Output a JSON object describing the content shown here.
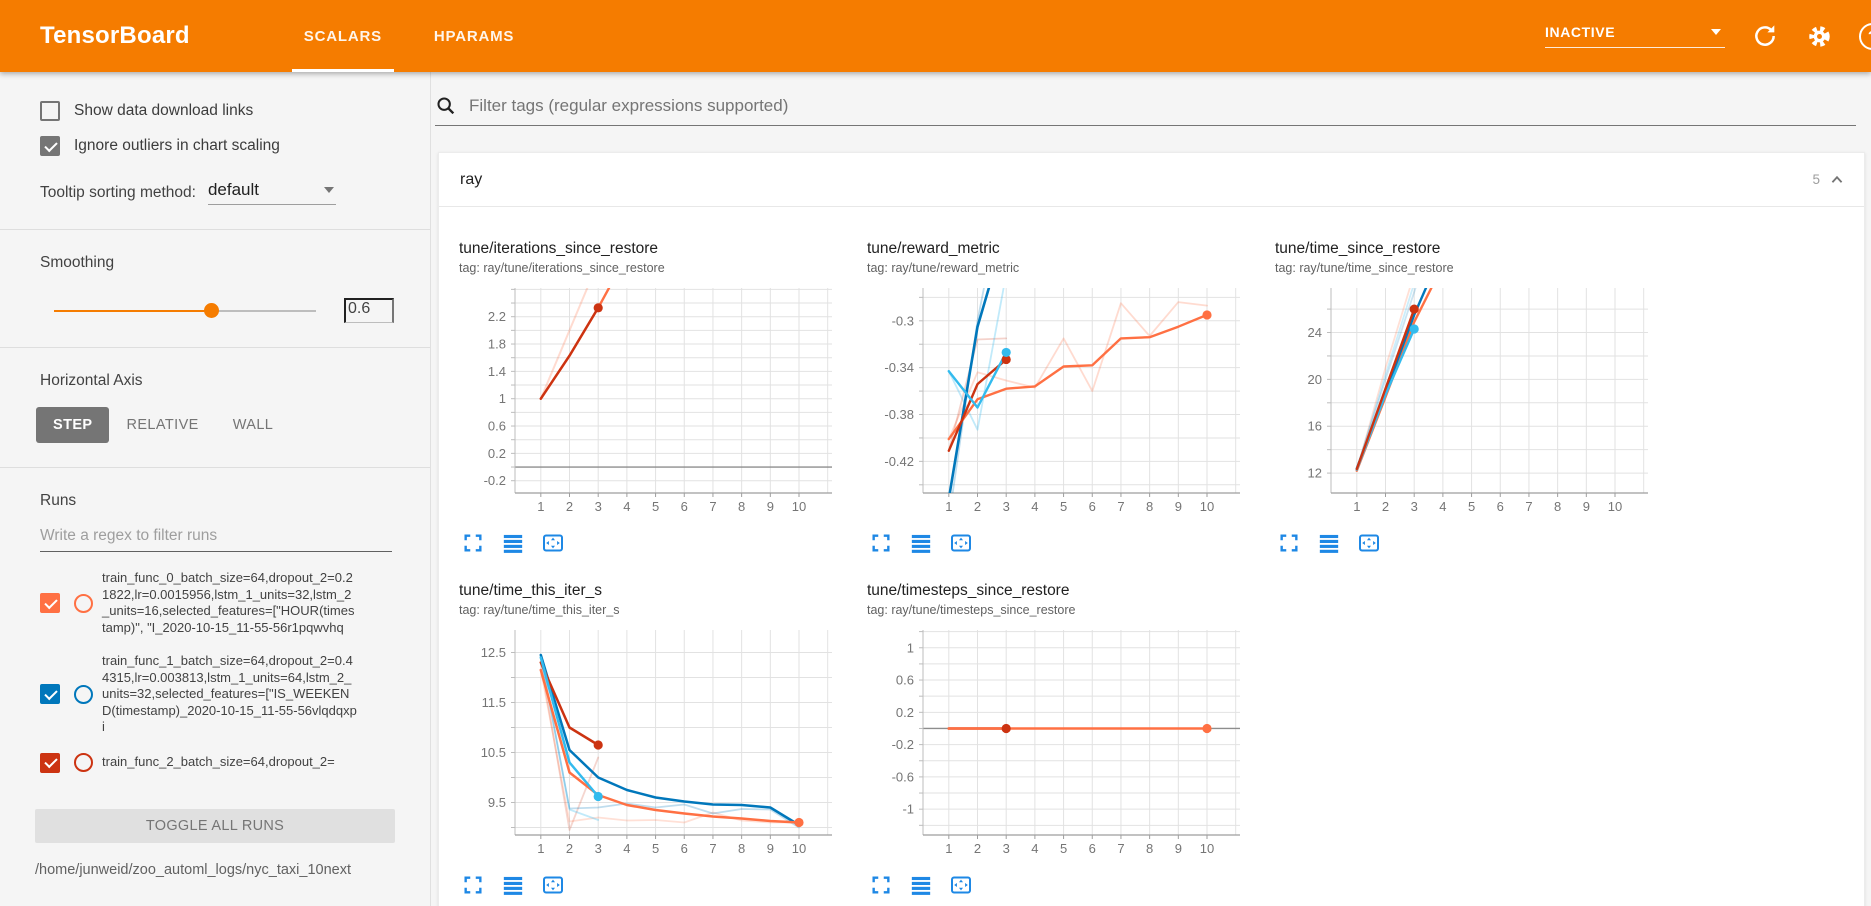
{
  "header": {
    "title": "TensorBoard",
    "tabs": [
      {
        "label": "SCALARS",
        "active": true
      },
      {
        "label": "HPARAMS",
        "active": false
      }
    ],
    "status": "INACTIVE",
    "icons": [
      "status-dropdown-caret-icon",
      "refresh-icon",
      "settings-gear-icon",
      "help-icon"
    ],
    "help_glyph": "?",
    "accent_color": "#f57c00"
  },
  "sidebar": {
    "checkboxes": [
      {
        "label": "Show data download links",
        "checked": false
      },
      {
        "label": "Ignore outliers in chart scaling",
        "checked": true
      }
    ],
    "tooltip_sorting": {
      "label": "Tooltip sorting method:",
      "value": "default"
    },
    "smoothing": {
      "label": "Smoothing",
      "value": "0.6",
      "fraction": 0.6
    },
    "horizontal_axis": {
      "label": "Horizontal Axis",
      "options": [
        "STEP",
        "RELATIVE",
        "WALL"
      ],
      "selected": "STEP"
    },
    "runs": {
      "label": "Runs",
      "filter_placeholder": "Write a regex to filter runs",
      "items": [
        {
          "text": "train_func_0_batch_size=64,dropout_2=0.21822,lr=0.0015956,lstm_1_units=32,lstm_2_units=16,selected_features=[\"HOUR(timestamp)\", \"I_2020-10-15_11-55-56r1pqwvhq",
          "checked": true,
          "color": "#ff7043"
        },
        {
          "text": "train_func_1_batch_size=64,dropout_2=0.44315,lr=0.003813,lstm_1_units=64,lstm_2_units=32,selected_features=[\"IS_WEEKEND(timestamp)_2020-10-15_11-55-56vlqdqxpi",
          "checked": true,
          "color": "#0077bb"
        },
        {
          "text": "train_func_2_batch_size=64,dropout_2=",
          "checked": true,
          "color": "#cc3311"
        }
      ],
      "toggle_all_label": "TOGGLE ALL RUNS",
      "log_path": "/home/junweid/zoo_automl_logs/nyc_taxi_10next"
    }
  },
  "main": {
    "filter_placeholder": "Filter tags (regular expressions supported)",
    "search_icon": "search-icon",
    "section": {
      "name": "ray",
      "count": "5",
      "collapse_icon": "chevron-up-icon"
    },
    "chart_toolbar_icons": [
      "expand-chart-icon",
      "runs-list-icon",
      "fit-domain-icon"
    ],
    "toolbar_icon_color": "#1e88e5"
  },
  "chart_data": [
    {
      "type": "line",
      "title": "tune/iterations_since_restore",
      "tag": "tag: ray/tune/iterations_since_restore",
      "xticks": [
        1,
        2,
        3,
        4,
        5,
        6,
        7,
        8,
        9,
        10
      ],
      "xlim": [
        0.1,
        11.15
      ],
      "ylim": [
        -0.38,
        2.62
      ],
      "yticks": [
        [
          2.2,
          "2.2"
        ],
        [
          1.8,
          "1.8"
        ],
        [
          1.4,
          "1.4"
        ],
        [
          1,
          "1"
        ],
        [
          0.6,
          "0.6"
        ],
        [
          0.2,
          "0.2"
        ],
        [
          -0.2,
          "-0.2"
        ]
      ],
      "zero_line": true,
      "series": [
        {
          "name": "train_func_0 unsmoothed",
          "color": "#ff7043",
          "opacity": 0.25,
          "width": 2,
          "x": [
            1,
            2,
            3,
            4
          ],
          "y": [
            1,
            2,
            3,
            4
          ]
        },
        {
          "name": "train_func_0 smoothed",
          "color": "#ff7043",
          "opacity": 1,
          "width": 2.4,
          "x": [
            1,
            2,
            3,
            4
          ],
          "y": [
            1,
            1.63,
            2.33,
            3.1
          ]
        },
        {
          "name": "train_func_2 smoothed",
          "color": "#cc3311",
          "opacity": 1,
          "width": 2.4,
          "x": [
            1,
            2,
            3
          ],
          "y": [
            1,
            1.63,
            2.33
          ],
          "end_dot": true
        }
      ]
    },
    {
      "type": "line",
      "title": "tune/reward_metric",
      "tag": "tag: ray/tune/reward_metric",
      "xticks": [
        1,
        2,
        3,
        4,
        5,
        6,
        7,
        8,
        9,
        10
      ],
      "xlim": [
        0.1,
        11.15
      ],
      "ylim": [
        -0.447,
        -0.272
      ],
      "yticks": [
        [
          -0.3,
          "-0.3"
        ],
        [
          -0.34,
          "-0.34"
        ],
        [
          -0.38,
          "-0.38"
        ],
        [
          -0.42,
          "-0.42"
        ]
      ],
      "zero_line": false,
      "series": [
        {
          "name": "train_func_0 unsmoothed",
          "color": "#ff7043",
          "opacity": 0.25,
          "width": 1.8,
          "x": [
            1,
            2,
            3,
            4,
            5,
            6,
            7,
            8,
            9,
            10
          ],
          "y": [
            -0.401,
            -0.344,
            -0.351,
            -0.357,
            -0.315,
            -0.36,
            -0.285,
            -0.313,
            -0.284,
            -0.287
          ]
        },
        {
          "name": "train_func_2 unsmoothed",
          "color": "#cc3311",
          "opacity": 0.22,
          "width": 1.8,
          "x": [
            1,
            2,
            3
          ],
          "y": [
            -0.411,
            -0.316,
            -0.315
          ]
        },
        {
          "name": "train_func_3 unsmoothed",
          "color": "#33bbee",
          "opacity": 0.3,
          "width": 1.8,
          "x": [
            1,
            2,
            3
          ],
          "y": [
            -0.343,
            -0.393,
            -0.26
          ]
        },
        {
          "name": "train_func_1 unsmoothed",
          "color": "#0077bb",
          "opacity": 0.25,
          "width": 1.8,
          "x": [
            1,
            2,
            2.4
          ],
          "y": [
            -0.47,
            -0.3,
            -0.25
          ]
        },
        {
          "name": "train_func_1 smoothed",
          "color": "#0077bb",
          "opacity": 1,
          "width": 2.6,
          "x": [
            1,
            2,
            2.6
          ],
          "y": [
            -0.452,
            -0.305,
            -0.255
          ]
        },
        {
          "name": "train_func_0 smoothed",
          "color": "#ff7043",
          "opacity": 1,
          "width": 2.4,
          "x": [
            1,
            2,
            3,
            4,
            5,
            6,
            7,
            8,
            9,
            10
          ],
          "y": [
            -0.401,
            -0.367,
            -0.358,
            -0.356,
            -0.339,
            -0.338,
            -0.315,
            -0.314,
            -0.305,
            -0.295
          ],
          "end_dot": true
        },
        {
          "name": "train_func_2 smoothed",
          "color": "#cc3311",
          "opacity": 1,
          "width": 2.4,
          "x": [
            1,
            2,
            3
          ],
          "y": [
            -0.411,
            -0.354,
            -0.333
          ],
          "end_dot": true
        },
        {
          "name": "train_func_3 smoothed",
          "color": "#33bbee",
          "opacity": 1,
          "width": 2.4,
          "x": [
            1,
            2,
            3
          ],
          "y": [
            -0.343,
            -0.374,
            -0.327
          ],
          "end_dot": true
        }
      ]
    },
    {
      "type": "line",
      "title": "tune/time_since_restore",
      "tag": "tag: ray/tune/time_since_restore",
      "xticks": [
        1,
        2,
        3,
        4,
        5,
        6,
        7,
        8,
        9,
        10
      ],
      "xlim": [
        0.1,
        11.15
      ],
      "ylim": [
        10.3,
        27.8
      ],
      "yticks": [
        [
          24,
          "24"
        ],
        [
          20,
          "20"
        ],
        [
          16,
          "16"
        ],
        [
          12,
          "12"
        ]
      ],
      "zero_line": false,
      "series": [
        {
          "name": "train_func_0 unsmoothed",
          "color": "#ff7043",
          "opacity": 0.22,
          "width": 1.8,
          "x": [
            1,
            2,
            2.9
          ],
          "y": [
            12.2,
            21,
            28.2
          ]
        },
        {
          "name": "train_func_3 unsmoothed",
          "color": "#33bbee",
          "opacity": 0.25,
          "width": 1.8,
          "x": [
            1,
            2,
            3
          ],
          "y": [
            12.3,
            20.4,
            28.2
          ]
        },
        {
          "name": "train_func_1 unsmoothed",
          "color": "#0077bb",
          "opacity": 0.2,
          "width": 1.8,
          "x": [
            1,
            2,
            3.1
          ],
          "y": [
            12.4,
            20,
            28.2
          ]
        },
        {
          "name": "train_func_0 smoothed",
          "color": "#ff7043",
          "opacity": 1,
          "width": 2.4,
          "x": [
            1,
            2,
            3,
            3.7
          ],
          "y": [
            12.2,
            18.5,
            24.9,
            28.3
          ]
        },
        {
          "name": "train_func_1 smoothed",
          "color": "#0077bb",
          "opacity": 1,
          "width": 2.4,
          "x": [
            1,
            2,
            3,
            3.5
          ],
          "y": [
            12.4,
            18.9,
            25.5,
            28.3
          ]
        },
        {
          "name": "train_func_3 smoothed",
          "color": "#33bbee",
          "opacity": 1,
          "width": 2.4,
          "x": [
            1,
            2,
            3
          ],
          "y": [
            12.3,
            18.7,
            24.3
          ],
          "end_dot": true
        },
        {
          "name": "train_func_2 smoothed",
          "color": "#cc3311",
          "opacity": 1,
          "width": 2.4,
          "x": [
            1,
            2,
            3
          ],
          "y": [
            12.35,
            19.2,
            26
          ],
          "end_dot": true
        }
      ]
    },
    {
      "type": "line",
      "title": "tune/time_this_iter_s",
      "tag": "tag: ray/tune/time_this_iter_s",
      "xticks": [
        1,
        2,
        3,
        4,
        5,
        6,
        7,
        8,
        9,
        10
      ],
      "xlim": [
        0.1,
        11.15
      ],
      "ylim": [
        8.85,
        12.95
      ],
      "yticks": [
        [
          12.5,
          "12.5"
        ],
        [
          11.5,
          "11.5"
        ],
        [
          10.5,
          "10.5"
        ],
        [
          9.5,
          "9.5"
        ]
      ],
      "zero_line": false,
      "series": [
        {
          "name": "train_func_2 unsmoothed",
          "color": "#cc3311",
          "opacity": 0.2,
          "width": 1.8,
          "x": [
            1,
            2,
            3
          ],
          "y": [
            12.3,
            8.95,
            10.4
          ]
        },
        {
          "name": "train_func_0 unsmoothed",
          "color": "#ff7043",
          "opacity": 0.22,
          "width": 1.8,
          "x": [
            1,
            2,
            3,
            4,
            5,
            6,
            7,
            8,
            9,
            10
          ],
          "y": [
            12.15,
            9.12,
            9.2,
            9.14,
            9.15,
            9.1,
            9.3,
            9.14,
            9.1,
            9.1
          ]
        },
        {
          "name": "train_func_3 unsmoothed",
          "color": "#33bbee",
          "opacity": 0.3,
          "width": 1.8,
          "x": [
            1,
            2,
            3
          ],
          "y": [
            12.4,
            9.36,
            9.15
          ]
        },
        {
          "name": "train_func_1 unsmoothed",
          "color": "#0077bb",
          "opacity": 0.25,
          "width": 1.8,
          "x": [
            1,
            2,
            3,
            4,
            5,
            6,
            7,
            8,
            9,
            10
          ],
          "y": [
            12.45,
            9.38,
            9.4,
            9.48,
            9.4,
            9.46,
            9.28,
            9.37,
            9.36,
            9
          ]
        },
        {
          "name": "train_func_1 smoothed",
          "color": "#0077bb",
          "opacity": 1,
          "width": 2.5,
          "x": [
            1,
            2,
            3,
            4,
            5,
            6,
            7,
            8,
            9,
            10
          ],
          "y": [
            12.45,
            10.55,
            10,
            9.75,
            9.6,
            9.52,
            9.46,
            9.45,
            9.4,
            9.05
          ]
        },
        {
          "name": "train_func_0 smoothed",
          "color": "#ff7043",
          "opacity": 1,
          "width": 2.5,
          "x": [
            1,
            2,
            3,
            4,
            5,
            6,
            7,
            8,
            9,
            10
          ],
          "y": [
            12.15,
            10.1,
            9.65,
            9.45,
            9.35,
            9.28,
            9.22,
            9.18,
            9.13,
            9.1
          ],
          "end_dot": true
        },
        {
          "name": "train_func_2 smoothed",
          "color": "#cc3311",
          "opacity": 1,
          "width": 2.5,
          "x": [
            1,
            2,
            3
          ],
          "y": [
            12.3,
            11,
            10.65
          ],
          "end_dot": true
        },
        {
          "name": "train_func_3 smoothed",
          "color": "#33bbee",
          "opacity": 1,
          "width": 2.5,
          "x": [
            1,
            2,
            3
          ],
          "y": [
            12.4,
            10.3,
            9.62
          ],
          "end_dot": true
        }
      ]
    },
    {
      "type": "line",
      "title": "tune/timesteps_since_restore",
      "tag": "tag: ray/tune/timesteps_since_restore",
      "xticks": [
        1,
        2,
        3,
        4,
        5,
        6,
        7,
        8,
        9,
        10
      ],
      "xlim": [
        0.1,
        11.15
      ],
      "ylim": [
        -1.32,
        1.22
      ],
      "yticks": [
        [
          1,
          "1"
        ],
        [
          0.6,
          "0.6"
        ],
        [
          0.2,
          "0.2"
        ],
        [
          -0.2,
          "-0.2"
        ],
        [
          -0.6,
          "-0.6"
        ],
        [
          -1,
          "-1"
        ]
      ],
      "zero_line": true,
      "series": [
        {
          "name": "train_func_2 smoothed",
          "color": "#cc3311",
          "opacity": 1,
          "width": 2.6,
          "x": [
            1,
            3
          ],
          "y": [
            0,
            0
          ],
          "end_dot": true
        },
        {
          "name": "train_func_0 smoothed",
          "color": "#ff7043",
          "opacity": 1,
          "width": 2.6,
          "x": [
            1,
            10
          ],
          "y": [
            0,
            0
          ],
          "end_dot": true
        }
      ]
    }
  ]
}
